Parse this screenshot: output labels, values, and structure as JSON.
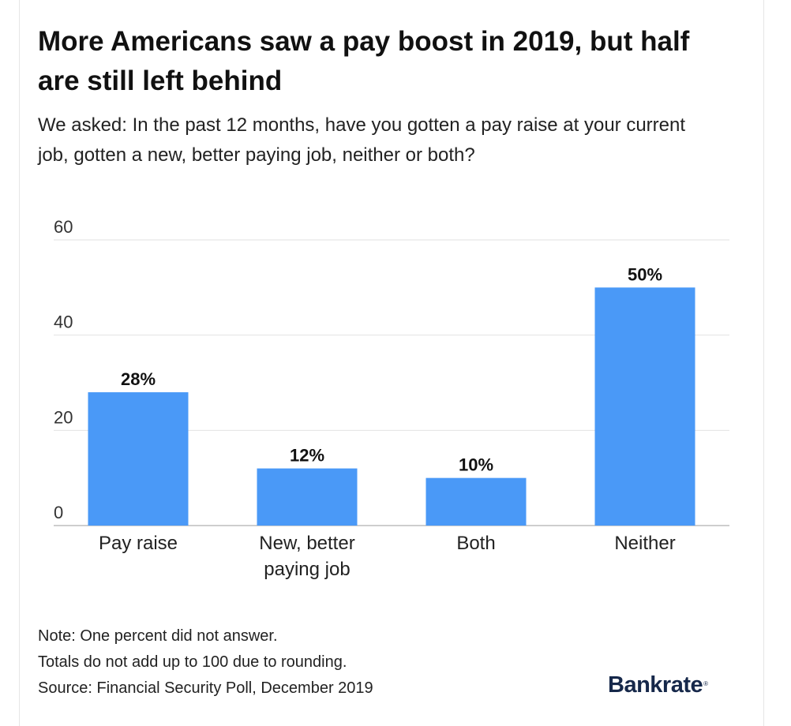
{
  "title": "More Americans saw a pay boost in 2019, but half are still left behind",
  "subtitle": "We asked: In the past 12 months, have you gotten a pay raise at your current job, gotten a new, better paying job, neither or both?",
  "chart_data": {
    "type": "bar",
    "title": "More Americans saw a pay boost in 2019, but half are still left behind",
    "subtitle": "We asked: In the past 12 months, have you gotten a pay raise at your current job, gotten a new, better paying job, neither or both?",
    "categories": [
      [
        "Pay raise"
      ],
      [
        "New, better",
        "paying job"
      ],
      [
        "Both"
      ],
      [
        "Neither"
      ]
    ],
    "values": [
      28,
      12,
      10,
      50
    ],
    "value_labels": [
      "28%",
      "12%",
      "10%",
      "50%"
    ],
    "yticks": [
      0,
      20,
      40,
      60
    ],
    "ylim": [
      0,
      60
    ],
    "grid": true,
    "legend": "none",
    "bar_color": "#4a99f7",
    "grid_color": "#e2e2e2",
    "axis_color": "#bdbdbd"
  },
  "notes": [
    "Note: One percent did not answer.",
    "Totals do not add up to 100 due to rounding.",
    "Source: Financial Security Poll, December 2019"
  ],
  "brand": "Bankrate",
  "brand_mark": "®",
  "brand_color": "#16284a"
}
